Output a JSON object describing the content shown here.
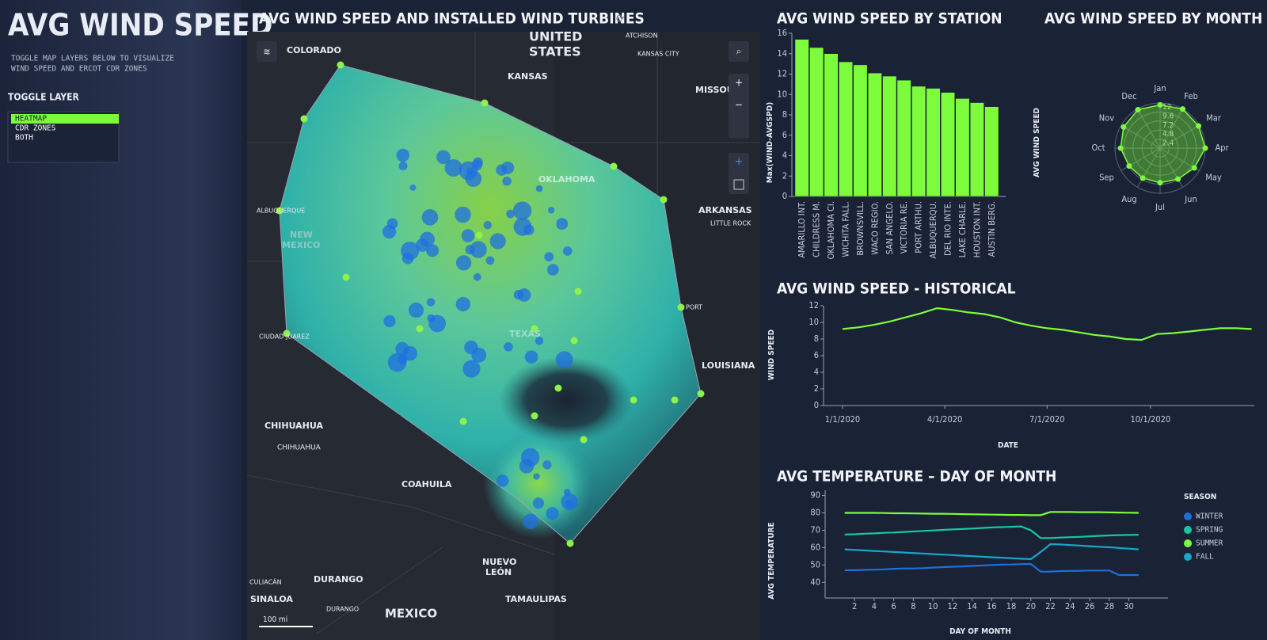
{
  "sidebar": {
    "title": "AVG WIND SPEED",
    "description": [
      "TOGGLE MAP LAYERS BELOW TO VISUALIZE",
      "WIND SPEED AND ERCOT CDR ZONES"
    ],
    "toggle_label": "TOGGLE LAYER",
    "options": [
      "HEATMAP",
      "CDR ZONES",
      "BOTH"
    ]
  },
  "map": {
    "title": "AVG WIND SPEED AND INSTALLED WIND TURBINES",
    "labels": [
      "COLORADO",
      "UNITED",
      "STATES",
      "KANSAS",
      "ATCHISON",
      "KANSAS CITY",
      "MISSOU",
      "OKLAHOMA",
      "ARKANSAS",
      "LITTLE ROCK",
      "ALBUQUERQUE",
      "NEW",
      "MEXICO",
      "TEXAS",
      "CIUDAD JUAREZ",
      "LOUISIANA",
      "CHIHUAHUA",
      "CHIHUAHUA",
      "COAHUILA",
      "NUEVO",
      "LEÓN",
      "DURANGO",
      "DURANGO",
      "SINALOA",
      "CULIACÁN",
      "TAMAULIPAS",
      "MEXICO",
      "PORT"
    ],
    "scale": "100 mi"
  },
  "chart_data": [
    {
      "type": "bar",
      "title": "AVG WIND SPEED BY STATION",
      "ylabel": "Max(WIND-AVGSPD)",
      "y2label": "AVG WIND SPEED",
      "color": "#7cfc3a",
      "categories": [
        "AMARILLO INT.",
        "CHILDRESS M.",
        "OKLAHOMA CI.",
        "WICHITA FALL.",
        "BROWNSVILL.",
        "WACO REGIO.",
        "SAN ANGELO.",
        "VICTORIA RE.",
        "PORT ARTHU.",
        "ALBUQUERQU.",
        "DEL RIO INTE.",
        "LAKE CHARLE.",
        "HOUSTON INT.",
        "AUSTIN BERG."
      ],
      "values": [
        15.4,
        14.6,
        14.0,
        13.2,
        12.9,
        12.1,
        11.8,
        11.4,
        10.8,
        10.6,
        10.2,
        9.6,
        9.2,
        8.8
      ],
      "ylim": [
        0,
        16
      ],
      "yticks": [
        0,
        2,
        4,
        6,
        8,
        10,
        12,
        14,
        16
      ]
    },
    {
      "type": "radar",
      "title": "AVG WIND SPEED BY MONTH",
      "color": "#7cfc3a",
      "categories": [
        "Jan",
        "Feb",
        "Mar",
        "Apr",
        "May",
        "Jun",
        "Jul",
        "Aug",
        "Sep",
        "Oct",
        "Nov",
        "Dec"
      ],
      "values": [
        11.5,
        12,
        11.8,
        12,
        10.5,
        9.5,
        9.2,
        9.2,
        9.5,
        10.5,
        11.2,
        11.8
      ],
      "rlim": [
        0,
        12
      ],
      "rticks": [
        2.4,
        4.8,
        7.2,
        9.6,
        12
      ]
    },
    {
      "type": "line",
      "title": "AVG WIND SPEED - HISTORICAL",
      "ylabel": "WIND SPEED",
      "xlabel": "DATE",
      "color": "#7cfc3a",
      "x": [
        "1/1/2020",
        "1/15/2020",
        "1/29/2020",
        "2/12/2020",
        "2/26/2020",
        "3/11/2020",
        "3/25/2020",
        "4/8/2020",
        "4/22/2020",
        "5/6/2020",
        "5/20/2020",
        "6/3/2020",
        "6/17/2020",
        "7/1/2020",
        "7/15/2020",
        "7/29/2020",
        "8/12/2020",
        "8/26/2020",
        "9/9/2020",
        "9/23/2020",
        "10/7/2020",
        "10/21/2020",
        "11/4/2020",
        "11/18/2020",
        "12/2/2020",
        "12/16/2020",
        "12/30/2020"
      ],
      "values": [
        9.2,
        9.4,
        9.7,
        10.1,
        10.6,
        11.1,
        11.7,
        11.5,
        11.2,
        11.0,
        10.6,
        10.0,
        9.6,
        9.3,
        9.1,
        8.8,
        8.5,
        8.3,
        8.0,
        7.9,
        8.6,
        8.7,
        8.9,
        9.1,
        9.3,
        9.3,
        9.2
      ],
      "xlim": [
        "1/1/2020",
        "12/31/2020"
      ],
      "xticks": [
        "1/1/2020",
        "4/1/2020",
        "7/1/2020",
        "10/1/2020"
      ],
      "ylim": [
        0,
        12
      ],
      "yticks": [
        0,
        2,
        4,
        6,
        8,
        10,
        12
      ]
    },
    {
      "type": "multiline",
      "title": "AVG TEMPERATURE – DAY OF MONTH",
      "ylabel": "AVG TEMPERATURE",
      "xlabel": "DAY OF MONTH",
      "legend_title": "SEASON",
      "x": [
        1,
        2,
        3,
        4,
        5,
        6,
        7,
        8,
        9,
        10,
        11,
        12,
        13,
        14,
        15,
        16,
        17,
        18,
        19,
        20,
        21,
        22,
        23,
        24,
        25,
        26,
        27,
        28,
        29,
        30,
        31
      ],
      "series": [
        {
          "name": "WINTER",
          "color": "#1e6fd9",
          "values": [
            47,
            47,
            47.2,
            47.3,
            47.5,
            47.8,
            48,
            48,
            48.2,
            48.5,
            48.8,
            49,
            49.2,
            49.5,
            49.7,
            50,
            50.2,
            50.3,
            50.5,
            50.6,
            46.2,
            46.2,
            46.5,
            46.6,
            46.7,
            46.8,
            46.8,
            46.8,
            44.2,
            44.2,
            44.2
          ]
        },
        {
          "name": "SPRING",
          "color": "#14c9a0",
          "values": [
            67.5,
            67.7,
            68,
            68.2,
            68.5,
            68.7,
            69,
            69.3,
            69.6,
            69.9,
            70.2,
            70.5,
            70.7,
            71,
            71.3,
            71.6,
            71.8,
            72,
            72.2,
            70,
            65.5,
            65.5,
            65.8,
            66,
            66.2,
            66.5,
            66.8,
            67,
            67.2,
            67.3,
            67.4
          ]
        },
        {
          "name": "SUMMER",
          "color": "#7cfc3a",
          "values": [
            80,
            80,
            80,
            80,
            79.9,
            79.8,
            79.8,
            79.7,
            79.6,
            79.5,
            79.5,
            79.4,
            79.3,
            79.2,
            79.1,
            79,
            78.9,
            78.8,
            78.8,
            78.7,
            78.7,
            80.5,
            80.5,
            80.5,
            80.4,
            80.4,
            80.4,
            80.3,
            80.2,
            80.1,
            80
          ]
        },
        {
          "name": "FALL",
          "color": "#17a7c9",
          "values": [
            59,
            58.7,
            58.4,
            58.1,
            57.8,
            57.5,
            57.2,
            56.9,
            56.6,
            56.3,
            56,
            55.7,
            55.4,
            55.1,
            54.8,
            54.5,
            54.2,
            53.9,
            53.6,
            53.4,
            57.5,
            62,
            61.8,
            61.5,
            61.2,
            60.8,
            60.5,
            60.2,
            59.8,
            59.4,
            59
          ]
        }
      ],
      "xlim": [
        -1,
        34
      ],
      "xticks": [
        2,
        4,
        6,
        8,
        10,
        12,
        14,
        16,
        18,
        20,
        22,
        24,
        26,
        28,
        30
      ],
      "ylim": [
        31,
        93
      ],
      "yticks": [
        40,
        50,
        60,
        70,
        80,
        90
      ]
    }
  ]
}
